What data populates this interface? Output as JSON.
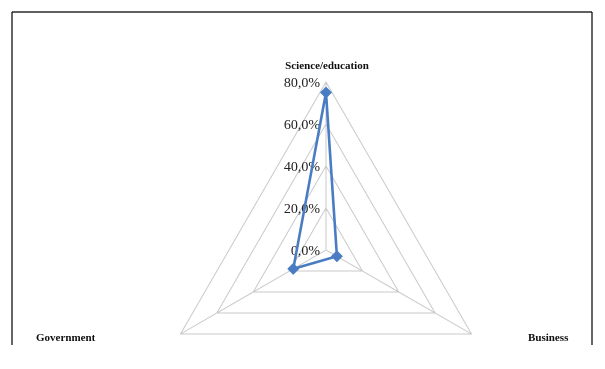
{
  "chart_data": {
    "type": "radar",
    "categories": [
      "Science/education",
      "Business",
      "Government"
    ],
    "tick_labels": [
      "0,0%",
      "20,0%",
      "40,0%",
      "60,0%",
      "80,0%"
    ],
    "rmax": 80,
    "grid": true,
    "series": [
      {
        "values": [
          75,
          6,
          18
        ]
      }
    ]
  },
  "colors": {
    "series": "#4a7cc3",
    "grid": "#c9c9c9",
    "border": "#000000"
  }
}
